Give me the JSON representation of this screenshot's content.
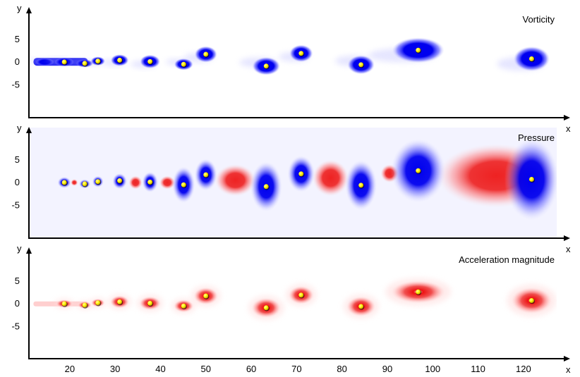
{
  "chart_data": [
    {
      "type": "heatmap",
      "title": "Vorticity",
      "xlabel": "x",
      "ylabel": "y",
      "field": "vorticity",
      "yticks": [
        "5",
        "0",
        "-5"
      ],
      "colors": {
        "main": "#0000ee",
        "fade": "#c8c8ff",
        "marker": "#ffee00"
      },
      "vortices": [
        {
          "x": 14.5,
          "y": 0.0,
          "w": 4.0,
          "h": 1.7
        },
        {
          "x": 18.8,
          "y": 0.0,
          "w": 4.2,
          "h": 2.0
        },
        {
          "x": 23.3,
          "y": -0.3,
          "w": 3.8,
          "h": 1.8
        },
        {
          "x": 26.2,
          "y": 0.2,
          "w": 3.2,
          "h": 2.0
        },
        {
          "x": 31.0,
          "y": 0.4,
          "w": 4.0,
          "h": 2.6
        },
        {
          "x": 37.7,
          "y": 0.1,
          "w": 4.5,
          "h": 3.0
        },
        {
          "x": 45.1,
          "y": -0.5,
          "w": 4.2,
          "h": 2.6
        },
        {
          "x": 50.0,
          "y": 1.7,
          "w": 5.0,
          "h": 3.6
        },
        {
          "x": 63.3,
          "y": -0.9,
          "w": 6.2,
          "h": 4.0
        },
        {
          "x": 71.0,
          "y": 1.9,
          "w": 5.2,
          "h": 3.8
        },
        {
          "x": 84.2,
          "y": -0.6,
          "w": 6.0,
          "h": 4.2
        },
        {
          "x": 96.8,
          "y": 2.6,
          "w": 11.5,
          "h": 5.6
        },
        {
          "x": 121.8,
          "y": 0.7,
          "w": 8.0,
          "h": 5.5
        }
      ]
    },
    {
      "type": "heatmap",
      "title": "Pressure",
      "xlabel": "x",
      "ylabel": "y",
      "field": "pressure",
      "yticks": [
        "5",
        "0",
        "-5"
      ],
      "colors": {
        "low": "#0000ee",
        "high": "#ee2222",
        "marker": "#ffee00"
      },
      "low_regions": [
        {
          "x": 18.8,
          "y": 0.0,
          "w": 3.0,
          "h": 2.5
        },
        {
          "x": 23.3,
          "y": -0.3,
          "w": 2.5,
          "h": 2.0
        },
        {
          "x": 26.2,
          "y": 0.2,
          "w": 2.5,
          "h": 2.5
        },
        {
          "x": 31.0,
          "y": 0.3,
          "w": 3.2,
          "h": 3.5
        },
        {
          "x": 37.7,
          "y": 0.1,
          "w": 3.5,
          "h": 4.5
        },
        {
          "x": 45.1,
          "y": -0.5,
          "w": 5.0,
          "h": 8.0
        },
        {
          "x": 50.0,
          "y": 1.7,
          "w": 5.0,
          "h": 7.0
        },
        {
          "x": 63.3,
          "y": -0.9,
          "w": 7.0,
          "h": 11.0
        },
        {
          "x": 71.0,
          "y": 1.9,
          "w": 6.0,
          "h": 8.0
        },
        {
          "x": 84.2,
          "y": -0.6,
          "w": 7.0,
          "h": 11.0
        },
        {
          "x": 96.8,
          "y": 2.6,
          "w": 12.0,
          "h": 14.0
        },
        {
          "x": 121.8,
          "y": 0.7,
          "w": 12.0,
          "h": 18.0
        }
      ],
      "high_regions": [
        {
          "x": 21.0,
          "y": 0.0,
          "w": 1.6,
          "h": 1.5
        },
        {
          "x": 34.5,
          "y": 0.0,
          "w": 3.0,
          "h": 3.0
        },
        {
          "x": 41.5,
          "y": 0.0,
          "w": 3.5,
          "h": 3.0
        },
        {
          "x": 56.5,
          "y": 0.5,
          "w": 9.0,
          "h": 7.0
        },
        {
          "x": 77.5,
          "y": 1.0,
          "w": 8.0,
          "h": 8.0
        },
        {
          "x": 90.5,
          "y": 2.0,
          "w": 4.0,
          "h": 4.0
        },
        {
          "x": 114.0,
          "y": 1.5,
          "w": 26.0,
          "h": 14.0
        }
      ]
    },
    {
      "type": "heatmap",
      "title": "Acceleration magnitude",
      "xlabel": "x",
      "ylabel": "y",
      "field": "acceleration",
      "yticks": [
        "5",
        "0",
        "-5"
      ],
      "xticks": [
        "20",
        "30",
        "40",
        "50",
        "60",
        "70",
        "80",
        "90",
        "100",
        "110",
        "120"
      ],
      "colors": {
        "main": "#ee1111",
        "fade": "#ffcccc",
        "marker": "#ffee00"
      },
      "vortices": [
        {
          "x": 18.8,
          "y": 0.0,
          "w": 3.6,
          "h": 1.8
        },
        {
          "x": 23.3,
          "y": -0.3,
          "w": 3.0,
          "h": 1.6
        },
        {
          "x": 26.2,
          "y": 0.2,
          "w": 3.0,
          "h": 1.8
        },
        {
          "x": 31.0,
          "y": 0.4,
          "w": 4.2,
          "h": 2.8
        },
        {
          "x": 37.7,
          "y": 0.1,
          "w": 4.8,
          "h": 3.0
        },
        {
          "x": 45.1,
          "y": -0.5,
          "w": 4.4,
          "h": 2.8
        },
        {
          "x": 50.0,
          "y": 1.7,
          "w": 5.4,
          "h": 3.8
        },
        {
          "x": 63.3,
          "y": -0.9,
          "w": 6.5,
          "h": 4.4
        },
        {
          "x": 71.0,
          "y": 1.9,
          "w": 5.6,
          "h": 4.0
        },
        {
          "x": 84.2,
          "y": -0.6,
          "w": 6.4,
          "h": 4.4
        },
        {
          "x": 96.8,
          "y": 2.6,
          "w": 12.0,
          "h": 5.0
        },
        {
          "x": 121.8,
          "y": 0.7,
          "w": 9.0,
          "h": 5.8
        }
      ]
    }
  ],
  "markers": [
    {
      "x": 18.8,
      "y": 0.0
    },
    {
      "x": 23.3,
      "y": -0.3
    },
    {
      "x": 26.2,
      "y": 0.2
    },
    {
      "x": 31.0,
      "y": 0.4
    },
    {
      "x": 37.7,
      "y": 0.1
    },
    {
      "x": 45.1,
      "y": -0.5
    },
    {
      "x": 50.0,
      "y": 1.7
    },
    {
      "x": 63.3,
      "y": -0.9
    },
    {
      "x": 71.0,
      "y": 1.9
    },
    {
      "x": 84.2,
      "y": -0.6
    },
    {
      "x": 96.8,
      "y": 2.6
    },
    {
      "x": 121.8,
      "y": 0.7
    }
  ],
  "axis": {
    "xlim": [
      11,
      128
    ],
    "ylim": [
      -11,
      9.5
    ],
    "x_letter": "x",
    "y_letter": "y"
  }
}
